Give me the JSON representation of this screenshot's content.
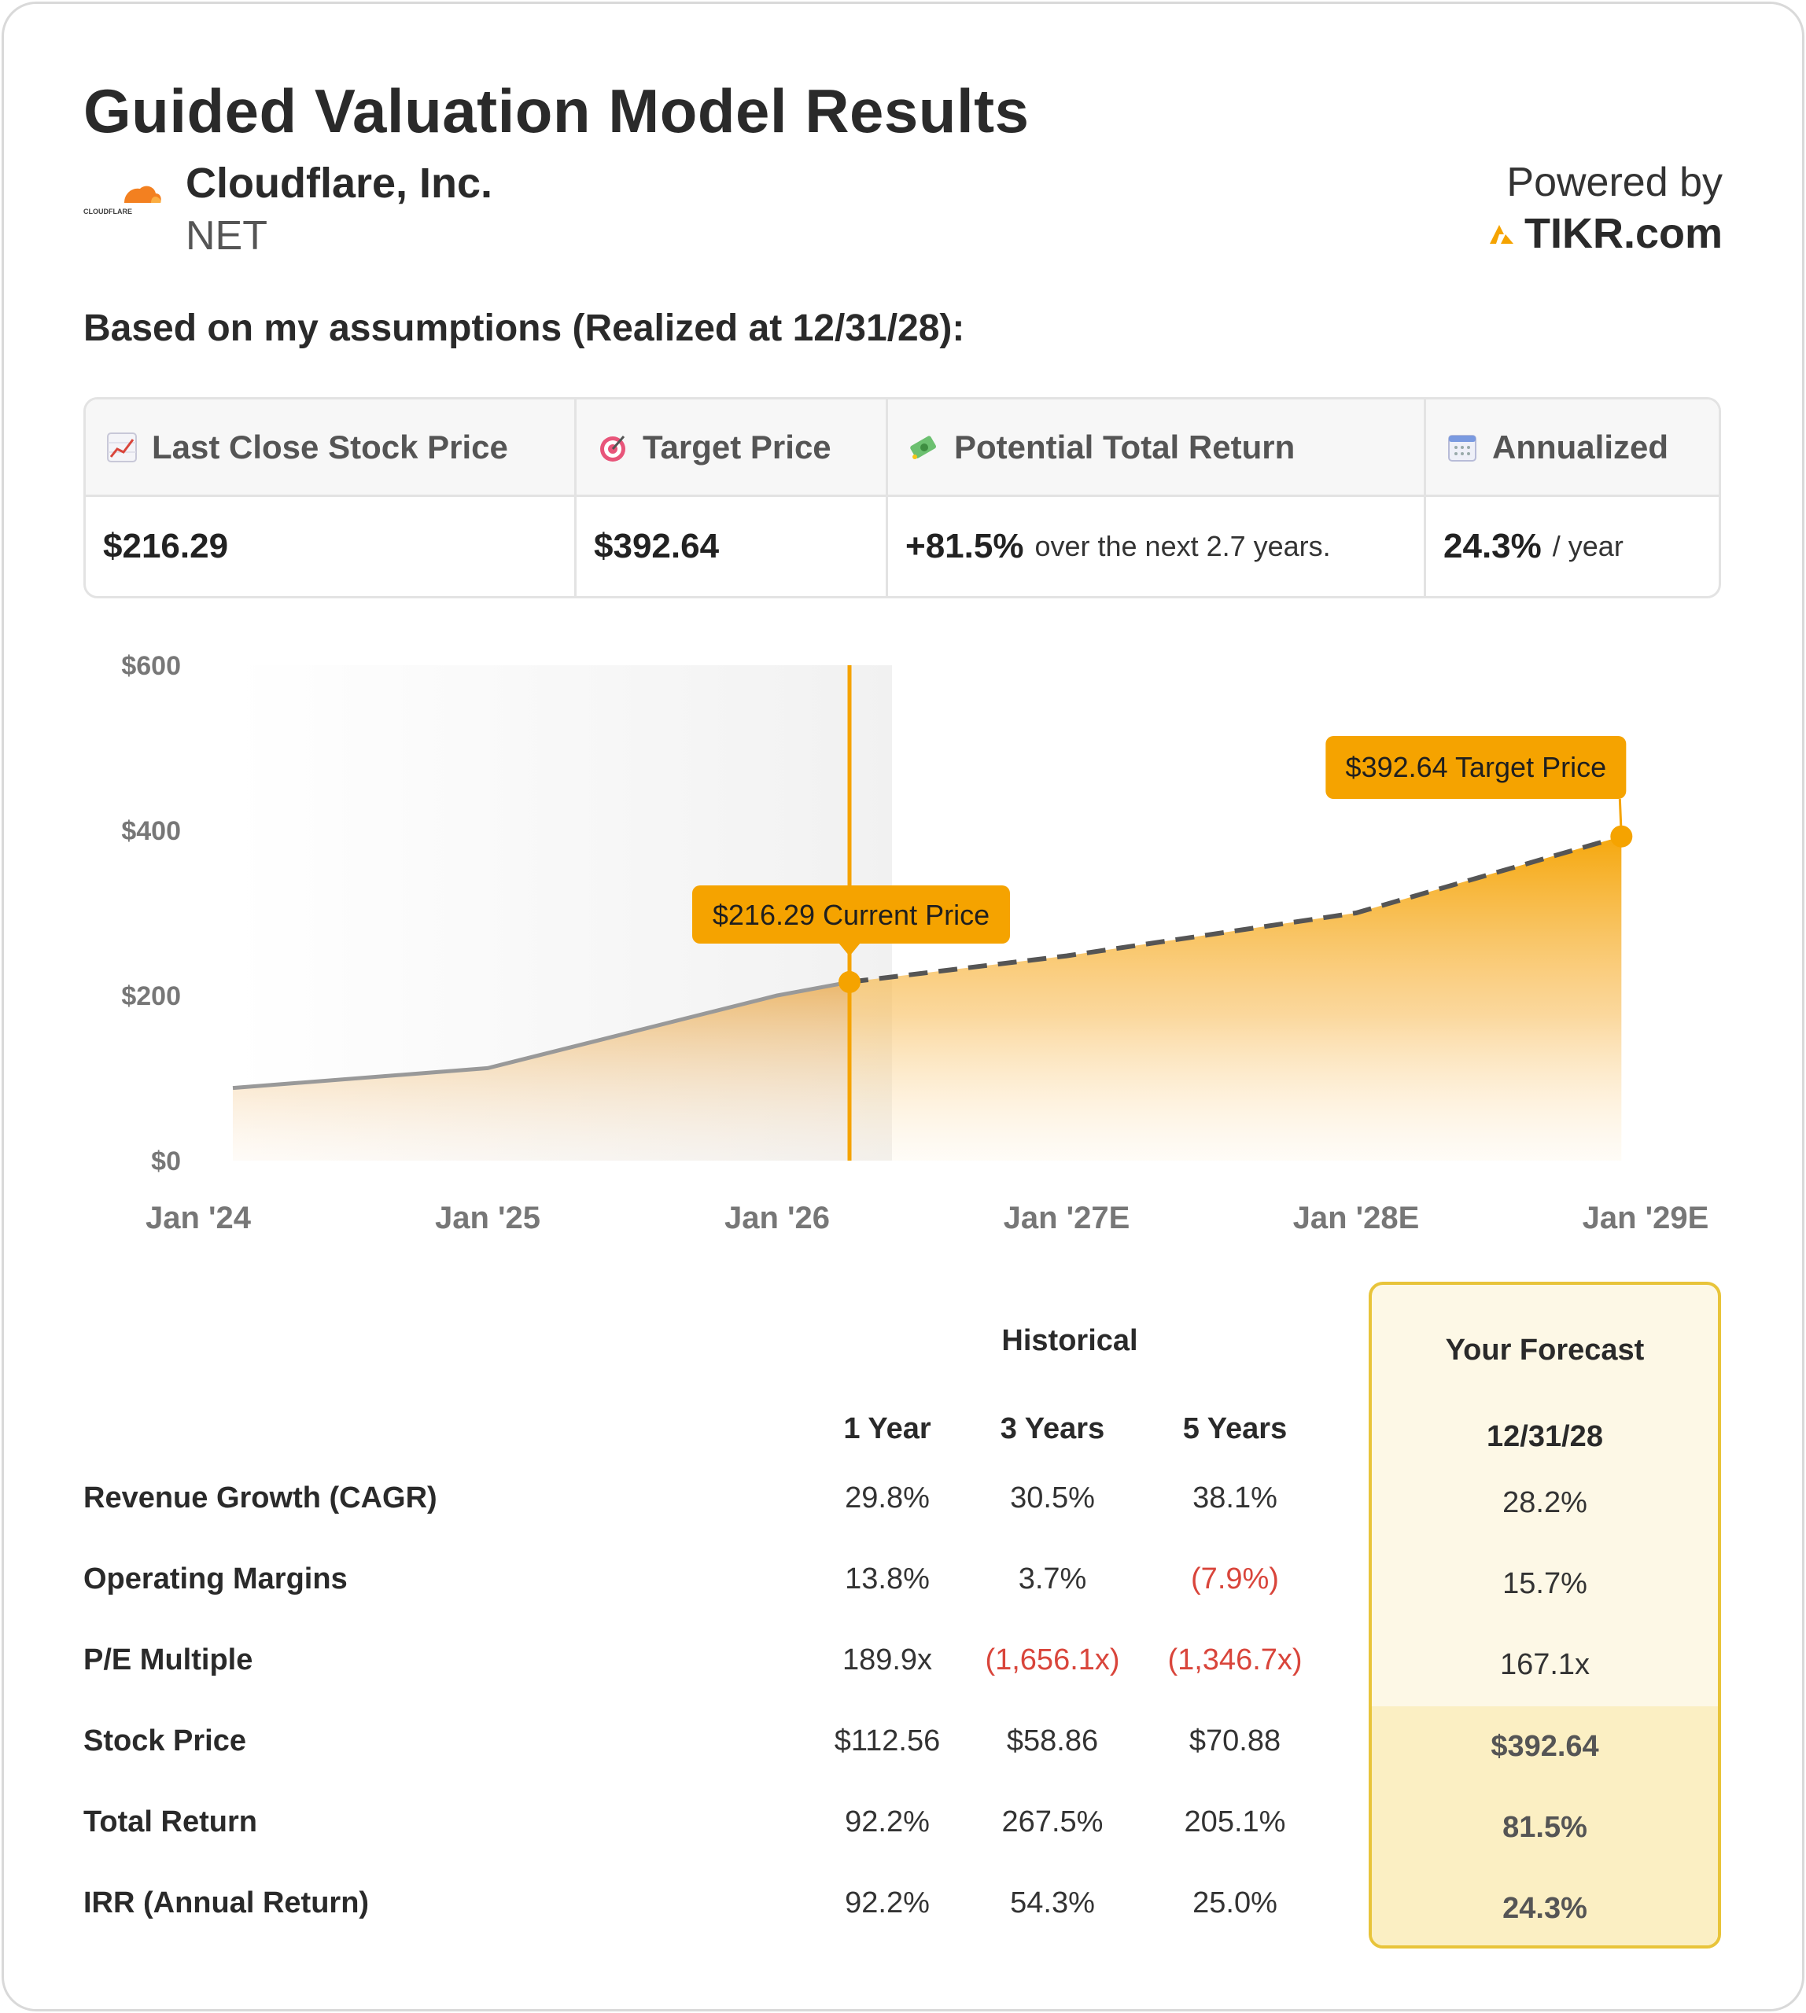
{
  "title": "Guided Valuation Model Results",
  "company": {
    "name": "Cloudflare, Inc.",
    "ticker": "NET",
    "logo_text": "CLOUDFLARE"
  },
  "powered_by": {
    "label": "Powered by",
    "brand": "TIKR.com"
  },
  "subtitle": "Based on my assumptions (Realized at 12/31/28):",
  "summary": {
    "last_close": {
      "label": "Last Close Stock Price",
      "value": "$216.29",
      "icon": "chart-increasing-icon"
    },
    "target": {
      "label": "Target Price",
      "value": "$392.64",
      "icon": "target-icon"
    },
    "total_return": {
      "label": "Potential Total Return",
      "value": "+81.5%",
      "note": "over the next 2.7 years.",
      "icon": "money-icon"
    },
    "annualized": {
      "label": "Annualized",
      "value": "24.3%",
      "note": "/ year",
      "icon": "calendar-icon"
    }
  },
  "chart_data": {
    "type": "area",
    "x_ticks": [
      "Jan '24",
      "Jan '25",
      "Jan '26",
      "Jan '27E",
      "Jan '28E",
      "Jan '29E"
    ],
    "y_ticks": [
      "$600",
      "$400",
      "$200",
      "$0"
    ],
    "ylim": [
      0,
      600
    ],
    "historical": {
      "x": [
        "2024-01",
        "2025-01",
        "2026-01",
        "2026-04"
      ],
      "y": [
        88,
        112,
        200,
        216.29
      ]
    },
    "forecast": {
      "x": [
        "2026-04",
        "2027-01",
        "2028-01",
        "2028-12"
      ],
      "y": [
        216.29,
        248,
        300,
        392.64
      ]
    },
    "annotations": {
      "current": "$216.29 Current Price",
      "target": "$392.64 Target Price"
    },
    "colors": {
      "accent": "#f5a300",
      "history_line": "#999999",
      "forecast_line": "#555555"
    }
  },
  "table": {
    "historical_label": "Historical",
    "forecast_label": "Your Forecast",
    "columns": [
      "1 Year",
      "3 Years",
      "5 Years"
    ],
    "forecast_date": "12/31/28",
    "rows": [
      {
        "label": "Revenue Growth (CAGR)",
        "values": [
          "29.8%",
          "30.5%",
          "38.1%"
        ],
        "forecast": "28.2%"
      },
      {
        "label": "Operating Margins",
        "values": [
          "13.8%",
          "3.7%",
          "(7.9%)"
        ],
        "forecast": "15.7%"
      },
      {
        "label": "P/E Multiple",
        "values": [
          "189.9x",
          "(1,656.1x)",
          "(1,346.7x)"
        ],
        "forecast": "167.1x"
      },
      {
        "label": "Stock Price",
        "values": [
          "$112.56",
          "$58.86",
          "$70.88"
        ],
        "forecast": "$392.64"
      },
      {
        "label": "Total Return",
        "values": [
          "92.2%",
          "267.5%",
          "205.1%"
        ],
        "forecast": "81.5%"
      },
      {
        "label": "IRR (Annual Return)",
        "values": [
          "92.2%",
          "54.3%",
          "25.0%"
        ],
        "forecast": "24.3%"
      }
    ]
  }
}
